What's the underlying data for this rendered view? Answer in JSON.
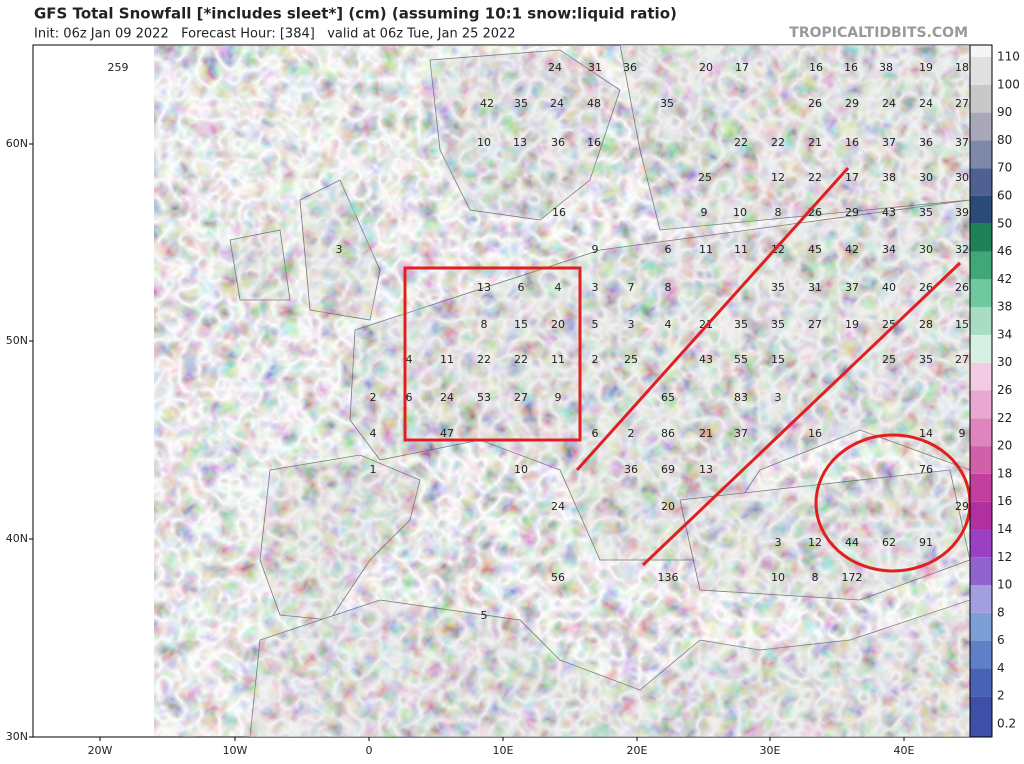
{
  "header": {
    "title": "GFS Total Snowfall [*includes sleet*] (cm) (assuming 10:1 snow:liquid ratio)",
    "subtitle": "Init: 06z Jan 09 2022   Forecast Hour: [384]   valid at 06z Tue, Jan 25 2022",
    "source": "TROPICALTIDBITS.COM"
  },
  "lat_labels": [
    "60N",
    "50N",
    "40N",
    "30N"
  ],
  "lon_labels": [
    "20W",
    "10W",
    "0",
    "10E",
    "20E",
    "30E",
    "40E"
  ],
  "colorbar": {
    "levels": [
      0.2,
      2,
      4,
      6,
      8,
      10,
      12,
      14,
      16,
      18,
      20,
      22,
      26,
      30,
      34,
      38,
      42,
      46,
      50,
      60,
      70,
      80,
      90,
      100,
      110
    ],
    "colors": [
      "#3d4fa6",
      "#4a62b5",
      "#5f7fc6",
      "#7d9fd6",
      "#a29ee0",
      "#8f64cc",
      "#9b3fc4",
      "#b0309e",
      "#c23f9e",
      "#d060a8",
      "#de85bd",
      "#e8a8d0",
      "#f2cce2",
      "#d8f0e4",
      "#a8dcc4",
      "#70c8a0",
      "#40a878",
      "#208058",
      "#2c4a78",
      "#506090",
      "#8088a8",
      "#a8a8b8",
      "#c8c8c8",
      "#e0e0e0",
      "#f5f5f5"
    ]
  },
  "map_labels": [
    259,
    42,
    35,
    24,
    48,
    10,
    13,
    36,
    16,
    24,
    31,
    36,
    20,
    17,
    16,
    16,
    38,
    19,
    18,
    35,
    26,
    29,
    24,
    24,
    27,
    22,
    22,
    21,
    16,
    37,
    36,
    37,
    25,
    12,
    22,
    17,
    38,
    30,
    30,
    9,
    10,
    8,
    26,
    29,
    43,
    35,
    39,
    16,
    9,
    6,
    11,
    11,
    12,
    45,
    42,
    34,
    30,
    32,
    13,
    6,
    4,
    3,
    7,
    8,
    35,
    31,
    37,
    40,
    26,
    26,
    8,
    15,
    20,
    5,
    3,
    4,
    21,
    35,
    35,
    27,
    19,
    25,
    28,
    15,
    4,
    11,
    22,
    22,
    11,
    2,
    25,
    43,
    55,
    15,
    25,
    35,
    27,
    2,
    6,
    24,
    53,
    27,
    9,
    65,
    83,
    3,
    4,
    47,
    6,
    2,
    86,
    21,
    37,
    16,
    14,
    9,
    1,
    10,
    36,
    69,
    13,
    76,
    24,
    20,
    29,
    3,
    12,
    44,
    62,
    91,
    56,
    136,
    10,
    8,
    172,
    5,
    3
  ]
}
